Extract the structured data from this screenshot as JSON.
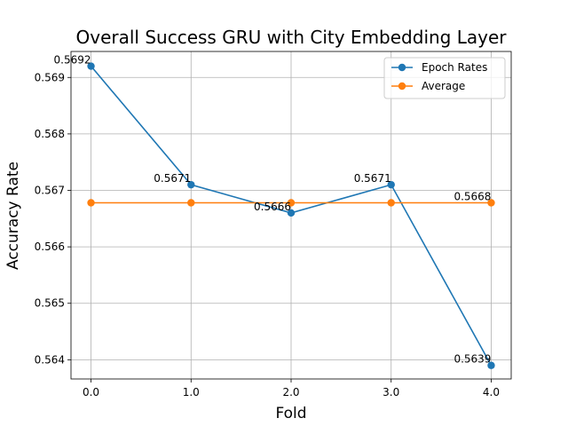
{
  "chart_data": {
    "type": "line",
    "title": "Overall Success GRU with City Embedding Layer",
    "xlabel": "Fold",
    "ylabel": "Accuracy Rate",
    "x": [
      0,
      1,
      2,
      3,
      4
    ],
    "x_tick_labels": [
      "0.0",
      "1.0",
      "2.0",
      "3.0",
      "4.0"
    ],
    "y_ticks": [
      0.564,
      0.565,
      0.566,
      0.567,
      0.568,
      0.569
    ],
    "y_tick_labels": [
      "0.564",
      "0.565",
      "0.566",
      "0.567",
      "0.568",
      "0.569"
    ],
    "xlim": [
      -0.2,
      4.2
    ],
    "ylim": [
      0.56366,
      0.56946
    ],
    "grid": true,
    "legend_position": "top-right",
    "series": [
      {
        "name": "Epoch Rates",
        "color": "#1f77b4",
        "marker": "circle",
        "values": [
          0.5692,
          0.5671,
          0.5666,
          0.5671,
          0.5639
        ],
        "data_labels": [
          "0.5692",
          "0.5671",
          "0.5666",
          "0.5671",
          "0.5639"
        ]
      },
      {
        "name": "Average",
        "color": "#ff7f0e",
        "marker": "circle",
        "values": [
          0.56678,
          0.56678,
          0.56678,
          0.56678,
          0.56678
        ],
        "data_labels": [
          "",
          "",
          "",
          "",
          "0.5668"
        ]
      }
    ]
  }
}
